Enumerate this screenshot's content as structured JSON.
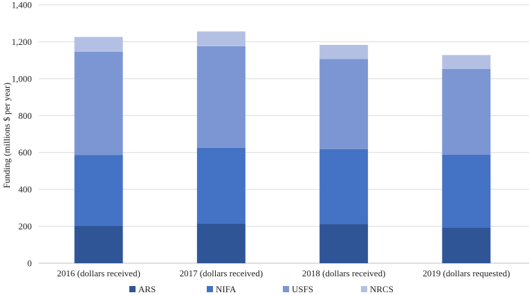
{
  "chart_data": {
    "type": "bar",
    "stacked": true,
    "categories": [
      "2016 (dollars received)",
      "2017 (dollars received)",
      "2018 (dollars received)",
      "2019 (dollars requested)"
    ],
    "series": [
      {
        "name": "ARS",
        "values": [
          202,
          216,
          213,
          193
        ],
        "color": "#2f5597"
      },
      {
        "name": "NIFA",
        "values": [
          384,
          410,
          405,
          395
        ],
        "color": "#4472c4"
      },
      {
        "name": "USFS",
        "values": [
          560,
          550,
          488,
          465
        ],
        "color": "#7b96d3"
      },
      {
        "name": "NRCS",
        "values": [
          80,
          80,
          77,
          75
        ],
        "color": "#b4c0e3"
      }
    ],
    "ylabel": "Funding (millions $ per year)",
    "xlabel": "",
    "ylim": [
      0,
      1400
    ],
    "yticks": [
      0,
      200,
      400,
      600,
      800,
      1000,
      1200,
      1400
    ],
    "ytick_labels": [
      "0",
      "200",
      "400",
      "600",
      "800",
      "1,000",
      "1,200",
      "1,400"
    ],
    "grid": true,
    "legend_position": "bottom"
  }
}
